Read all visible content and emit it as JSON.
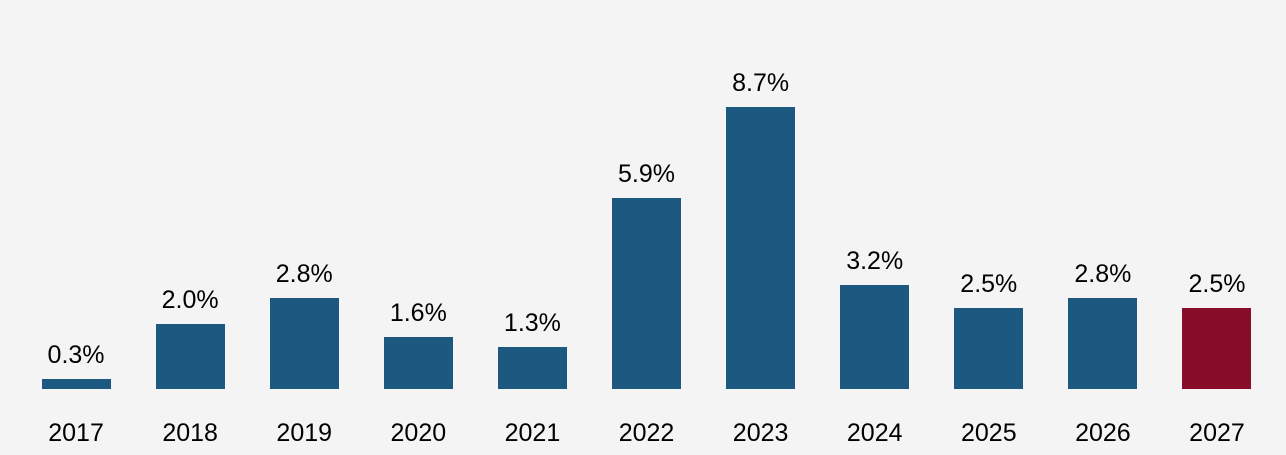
{
  "background_color": "#f4f4f4",
  "chart_data": {
    "type": "bar",
    "title": "",
    "xlabel": "",
    "ylabel": "",
    "categories": [
      "2017",
      "2018",
      "2019",
      "2020",
      "2021",
      "2022",
      "2023",
      "2024",
      "2025",
      "2026",
      "2027"
    ],
    "values": [
      0.3,
      2.0,
      2.8,
      1.6,
      1.3,
      5.9,
      8.7,
      3.2,
      2.5,
      2.8,
      2.5
    ],
    "value_labels": [
      "0.3%",
      "2.0%",
      "2.8%",
      "1.6%",
      "1.3%",
      "5.9%",
      "8.7%",
      "3.2%",
      "2.5%",
      "2.8%",
      "2.5%"
    ],
    "ylim": [
      0,
      9.5
    ],
    "grid": false,
    "axes_visible": false,
    "legend": "none",
    "bar_color_default": "#1C587F",
    "bar_color_highlight": "#880D2B",
    "highlight_index": 10,
    "label_color": "#000000"
  }
}
